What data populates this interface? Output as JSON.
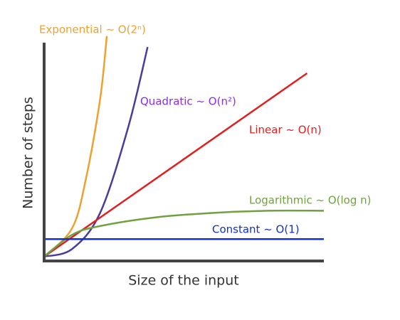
{
  "chart_data": {
    "type": "line",
    "xlabel": "Size of the input",
    "ylabel": "Number of steps",
    "xlim": [
      0,
      10
    ],
    "ylim": [
      0,
      10
    ],
    "series": [
      {
        "name": "Exponential ~ O(2ⁿ)",
        "color": "#f0a030",
        "label_color": "#f0a030",
        "x": [
          0,
          1,
          1.5,
          2,
          2.24
        ],
        "values": [
          0.2,
          1.5,
          3.8,
          7.4,
          10.3
        ]
      },
      {
        "name": "Quadratic ~ O(n²)",
        "color": "#4a3c9c",
        "label_color": "#8a30e0",
        "x": [
          0,
          1,
          2,
          3,
          3.7
        ],
        "values": [
          0.2,
          0.55,
          2.2,
          6.1,
          9.8
        ]
      },
      {
        "name": "Linear ~ O(n)",
        "color": "#e02020",
        "label_color": "#e02020",
        "x": [
          0,
          9.4
        ],
        "values": [
          0.2,
          8.6
        ]
      },
      {
        "name": "Logarithmic ~ O(log n)",
        "color": "#70a040",
        "label_color": "#70a040",
        "x": [
          0,
          1,
          2,
          4,
          6,
          8,
          10
        ],
        "values": [
          0.2,
          1.2,
          1.6,
          2.0,
          2.2,
          2.3,
          2.3
        ]
      },
      {
        "name": "Constant ~ O(1)",
        "color": "#1030d0",
        "label_color": "#1030d0",
        "x": [
          0,
          10
        ],
        "values": [
          1,
          1
        ]
      }
    ]
  }
}
